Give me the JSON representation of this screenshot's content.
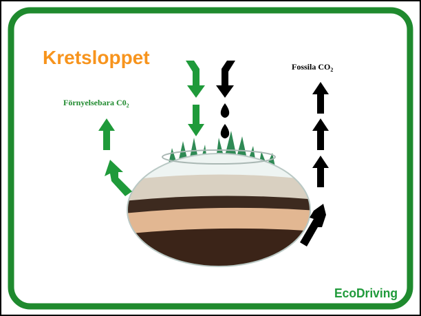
{
  "title": "Kretsloppet",
  "renewable_label": {
    "text": "Förnyelsebara C0",
    "subscript": "2"
  },
  "fossil_label": {
    "text": "Fossila CO",
    "subscript": "2"
  },
  "logo": "EcoDriving"
}
